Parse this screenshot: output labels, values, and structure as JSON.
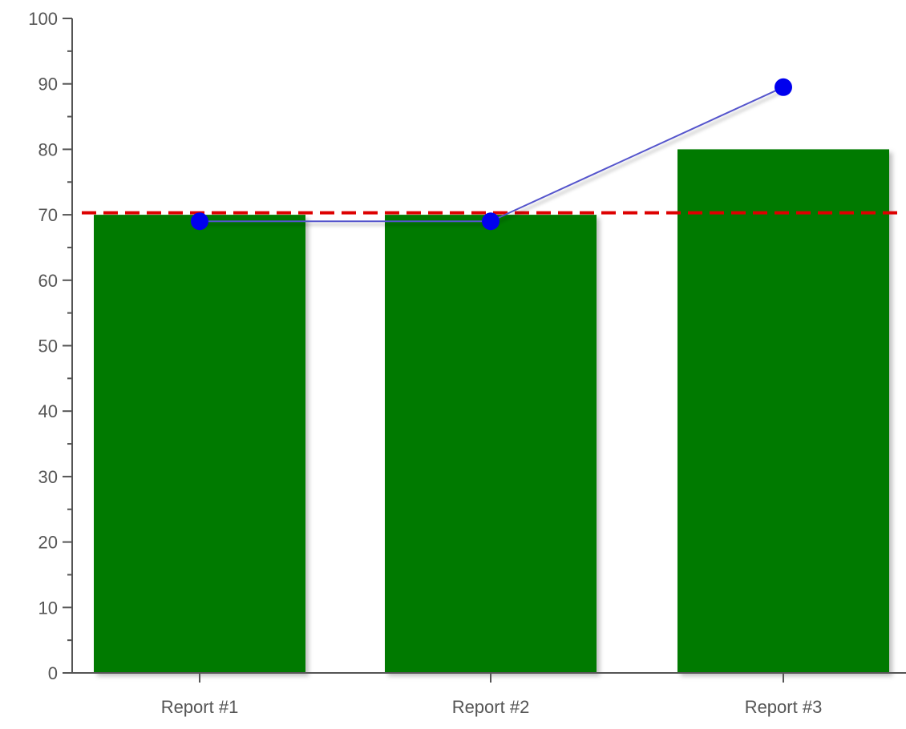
{
  "chart_data": {
    "type": "bar",
    "categories": [
      "Report #1",
      "Report #2",
      "Report #3"
    ],
    "series": [
      {
        "type": "bar",
        "values": [
          70,
          70,
          80
        ],
        "color": "#007a00"
      },
      {
        "type": "line",
        "values": [
          69,
          69,
          89.5
        ],
        "color": "#0000ee",
        "line_color": "#5555cc"
      }
    ],
    "reference_line": {
      "value": 70.3,
      "color": "#dd0000",
      "style": "dashed"
    },
    "ylim": [
      0,
      100
    ],
    "yticks": [
      "0",
      "10",
      "20",
      "30",
      "40",
      "50",
      "60",
      "70",
      "80",
      "90",
      "100"
    ],
    "title": "",
    "xlabel": "",
    "ylabel": "",
    "grid": false,
    "legend": "none"
  }
}
